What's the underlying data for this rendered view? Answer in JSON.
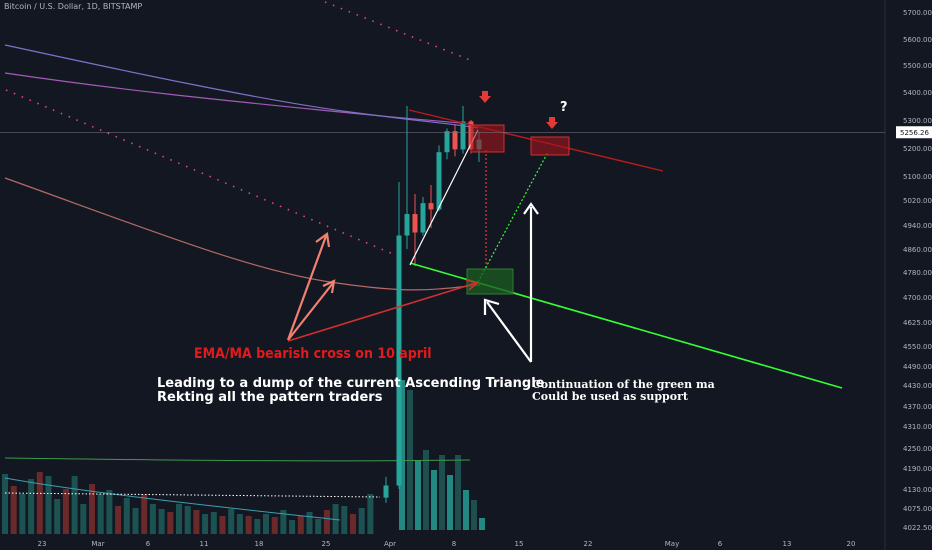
{
  "symbol_title": "Bitcoin / U.S. Dollar, 1D, BITSTAMP",
  "colors": {
    "background": "#131722",
    "up": "#26a69a",
    "down": "#ef5350",
    "axis_text": "#b2b5be",
    "annotation_red": "#e01b1b",
    "green_line": "#33ff33"
  },
  "annotations": {
    "bearish_cross": "EMA/MA bearish cross on 10 april",
    "dump_line1": "Leading to a dump of the current Ascending Triangle",
    "dump_line2": "Rekting all the pattern traders",
    "support_line1": "Continuation of the green ma",
    "support_line2": "Could be used as support",
    "question": "?"
  },
  "chart_data": {
    "type": "candlestick",
    "title": "",
    "price_axis": {
      "ticks": [
        "5700.00",
        "5600.00",
        "5500.00",
        "5400.00",
        "5300.00",
        "5200.00",
        "5100.00",
        "5020.00",
        "4940.00",
        "4860.00",
        "4780.00",
        "4700.00",
        "4625.00",
        "4550.00",
        "4490.00",
        "4430.00",
        "4370.00",
        "4310.00",
        "4250.00",
        "4190.00",
        "4130.00",
        "4075.00",
        "4022.50"
      ],
      "current_price": "5256.26"
    },
    "time_axis": {
      "ticks": [
        "23",
        "Mar",
        "6",
        "11",
        "18",
        "25",
        "Apr",
        "8",
        "15",
        "22",
        "May",
        "6",
        "13",
        "20"
      ]
    },
    "candles": [
      {
        "date": "Apr 1",
        "open": 4105,
        "high": 4165,
        "low": 4090,
        "close": 4140
      },
      {
        "date": "Apr 2",
        "open": 4140,
        "high": 5080,
        "low": 4130,
        "close": 4905
      },
      {
        "date": "Apr 3",
        "open": 4905,
        "high": 5350,
        "low": 4860,
        "close": 4975
      },
      {
        "date": "Apr 4",
        "open": 4975,
        "high": 5040,
        "low": 4800,
        "close": 4915
      },
      {
        "date": "Apr 5",
        "open": 4915,
        "high": 5030,
        "low": 4905,
        "close": 5010
      },
      {
        "date": "Apr 6",
        "open": 5010,
        "high": 5070,
        "low": 4930,
        "close": 4990
      },
      {
        "date": "Apr 7",
        "open": 4990,
        "high": 5210,
        "low": 4985,
        "close": 5185
      },
      {
        "date": "Apr 8",
        "open": 5185,
        "high": 5270,
        "low": 5160,
        "close": 5260
      },
      {
        "date": "Apr 9",
        "open": 5260,
        "high": 5285,
        "low": 5170,
        "close": 5195
      },
      {
        "date": "Apr 10",
        "open": 5195,
        "high": 5350,
        "low": 5180,
        "close": 5295
      },
      {
        "date": "Apr 11",
        "open": 5295,
        "high": 5300,
        "low": 5180,
        "close": 5195
      },
      {
        "date": "Apr 12",
        "open": 5195,
        "high": 5255,
        "low": 5150,
        "close": 5230
      }
    ]
  }
}
